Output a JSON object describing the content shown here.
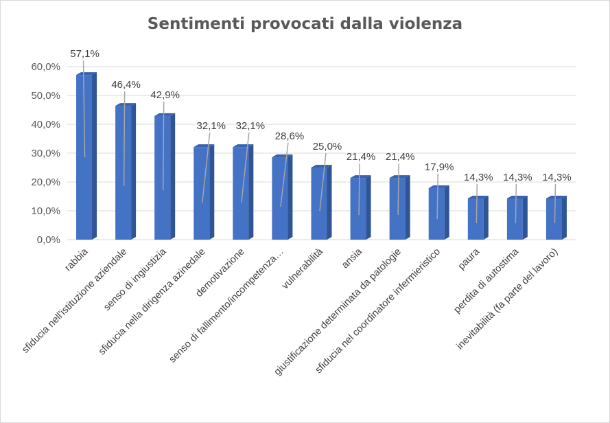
{
  "chart_data": {
    "type": "bar",
    "title": "Sentimenti provocati dalla violenza",
    "categories": [
      "rabbia",
      "sfiducia nell'istituzione aziendale",
      "senso di ingiustizia",
      "sfiducia nella dirigenza azinedale",
      "demotivazione",
      "senso di fallimento/incompetenza…",
      "vulnerabilità",
      "ansia",
      "giustificazione determinata da patologie",
      "sfiducia nel coordinatore infermieristico",
      "paura",
      "perdita di autostima",
      "inevitabilità (fa parte del lavoro)"
    ],
    "values": [
      57.1,
      46.4,
      42.9,
      32.1,
      32.1,
      28.6,
      25.0,
      21.4,
      21.4,
      17.9,
      14.3,
      14.3,
      14.3
    ],
    "data_labels": [
      "57,1%",
      "46,4%",
      "42,9%",
      "32,1%",
      "32,1%",
      "28,6%",
      "25,0%",
      "21,4%",
      "21,4%",
      "17,9%",
      "14,3%",
      "14,3%",
      "14,3%"
    ],
    "ylim": [
      0,
      60
    ],
    "yticks": [
      0,
      10,
      20,
      30,
      40,
      50,
      60
    ],
    "ytick_labels": [
      "0,0%",
      "10,0%",
      "20,0%",
      "30,0%",
      "40,0%",
      "50,0%",
      "60,0%"
    ],
    "xlabel": "",
    "ylabel": "",
    "grid": true,
    "legend": "none",
    "bar_color": "#4472c4",
    "bar_side_color": "#2f5597",
    "bar_top_color": "#3a62ad",
    "gridline_color": "#d9d9d9",
    "leader_line_color": "#a6a6a6"
  }
}
